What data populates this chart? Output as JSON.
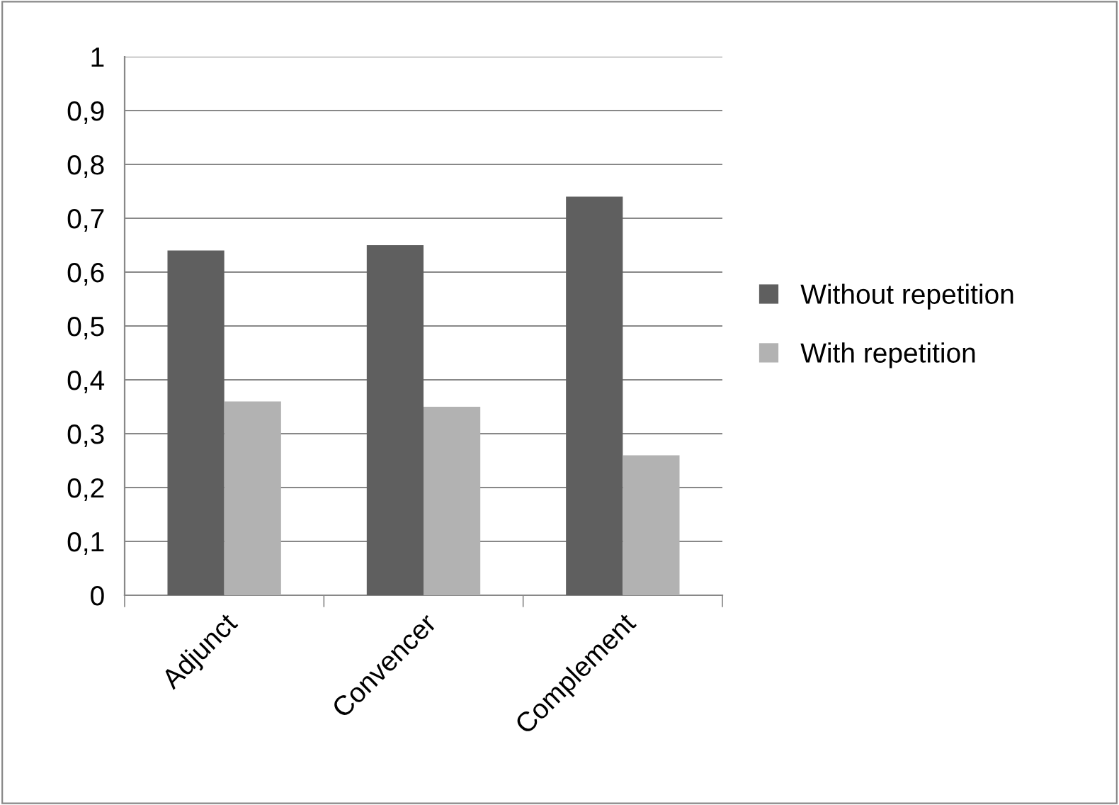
{
  "chart_data": {
    "type": "bar",
    "categories": [
      "Adjunct",
      "Convencer",
      "Complement"
    ],
    "series": [
      {
        "name": "Without repetition",
        "color": "#5f5f5f",
        "values": [
          0.64,
          0.65,
          0.74
        ]
      },
      {
        "name": "With repetition",
        "color": "#b2b2b2",
        "values": [
          0.36,
          0.35,
          0.26
        ]
      }
    ],
    "ylim": [
      0,
      1
    ],
    "yticks": [
      0,
      {
        "value": 0.1,
        "label": "0,1"
      },
      {
        "value": 0.2,
        "label": "0,2"
      },
      {
        "value": 0.3,
        "label": "0,3"
      },
      {
        "value": 0.4,
        "label": "0,4"
      },
      {
        "value": 0.5,
        "label": "0,5"
      },
      {
        "value": 0.6,
        "label": "0,6"
      },
      {
        "value": 0.7,
        "label": "0,7"
      },
      {
        "value": 0.8,
        "label": "0,8"
      },
      {
        "value": 0.9,
        "label": "0,9"
      },
      1
    ],
    "grid": "y",
    "legend": "right"
  }
}
